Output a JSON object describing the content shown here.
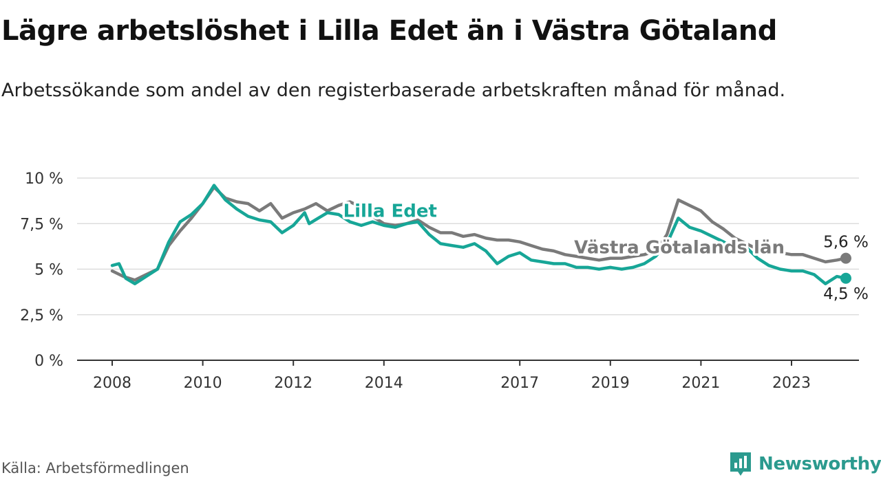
{
  "title": "Lägre arbetslöshet i Lilla Edet än i Västra Götaland",
  "subtitle": "Arbetssökande som andel av den registerbaserade arbetskraften månad för månad.",
  "source": "Källa: Arbetsförmedlingen",
  "brand": {
    "name": "Newsworthy",
    "icon": "newsworthy-logo-icon"
  },
  "colors": {
    "lilla_edet": "#17a697",
    "vastra_gotaland": "#7a7a7a",
    "grid": "#dddddd",
    "axis": "#333333"
  },
  "chart_data": {
    "type": "line",
    "title": "Lägre arbetslöshet i Lilla Edet än i Västra Götaland",
    "xlabel": "",
    "ylabel": "",
    "xlim": [
      2008,
      2024.7
    ],
    "ylim": [
      0,
      10
    ],
    "y_ticks": [
      {
        "value": 0,
        "label": "0 %"
      },
      {
        "value": 2.5,
        "label": "2,5 %"
      },
      {
        "value": 5,
        "label": "5 %"
      },
      {
        "value": 7.5,
        "label": "7,5 %"
      },
      {
        "value": 10,
        "label": "10 %"
      }
    ],
    "x_ticks": [
      {
        "value": 2008,
        "label": "2008"
      },
      {
        "value": 2010,
        "label": "2010"
      },
      {
        "value": 2012,
        "label": "2012"
      },
      {
        "value": 2014,
        "label": "2014"
      },
      {
        "value": 2017,
        "label": "2017"
      },
      {
        "value": 2019,
        "label": "2019"
      },
      {
        "value": 2021,
        "label": "2021"
      },
      {
        "value": 2023,
        "label": "2023"
      }
    ],
    "grid": true,
    "series": [
      {
        "name": "Västra Götalands län",
        "color": "#7a7a7a",
        "points": [
          [
            2008.0,
            4.9
          ],
          [
            2008.25,
            4.6
          ],
          [
            2008.5,
            4.4
          ],
          [
            2008.75,
            4.7
          ],
          [
            2009.0,
            5.0
          ],
          [
            2009.25,
            6.3
          ],
          [
            2009.5,
            7.1
          ],
          [
            2009.75,
            7.8
          ],
          [
            2010.0,
            8.6
          ],
          [
            2010.25,
            9.5
          ],
          [
            2010.5,
            8.9
          ],
          [
            2010.75,
            8.7
          ],
          [
            2011.0,
            8.6
          ],
          [
            2011.25,
            8.2
          ],
          [
            2011.5,
            8.6
          ],
          [
            2011.75,
            7.8
          ],
          [
            2012.0,
            8.1
          ],
          [
            2012.25,
            8.3
          ],
          [
            2012.5,
            8.6
          ],
          [
            2012.75,
            8.2
          ],
          [
            2013.0,
            8.5
          ],
          [
            2013.25,
            8.7
          ],
          [
            2013.5,
            8.4
          ],
          [
            2013.75,
            7.9
          ],
          [
            2014.0,
            7.5
          ],
          [
            2014.25,
            7.4
          ],
          [
            2014.5,
            7.5
          ],
          [
            2014.75,
            7.7
          ],
          [
            2015.0,
            7.3
          ],
          [
            2015.25,
            7.0
          ],
          [
            2015.5,
            7.0
          ],
          [
            2015.75,
            6.8
          ],
          [
            2016.0,
            6.9
          ],
          [
            2016.25,
            6.7
          ],
          [
            2016.5,
            6.6
          ],
          [
            2016.75,
            6.6
          ],
          [
            2017.0,
            6.5
          ],
          [
            2017.25,
            6.3
          ],
          [
            2017.5,
            6.1
          ],
          [
            2017.75,
            6.0
          ],
          [
            2018.0,
            5.8
          ],
          [
            2018.25,
            5.7
          ],
          [
            2018.5,
            5.6
          ],
          [
            2018.75,
            5.5
          ],
          [
            2019.0,
            5.6
          ],
          [
            2019.25,
            5.6
          ],
          [
            2019.5,
            5.7
          ],
          [
            2019.75,
            5.8
          ],
          [
            2020.0,
            6.0
          ],
          [
            2020.25,
            6.9
          ],
          [
            2020.5,
            8.8
          ],
          [
            2020.75,
            8.5
          ],
          [
            2021.0,
            8.2
          ],
          [
            2021.25,
            7.6
          ],
          [
            2021.5,
            7.2
          ],
          [
            2021.75,
            6.7
          ],
          [
            2022.0,
            6.4
          ],
          [
            2022.25,
            6.1
          ],
          [
            2022.5,
            5.9
          ],
          [
            2022.75,
            5.9
          ],
          [
            2023.0,
            5.8
          ],
          [
            2023.25,
            5.8
          ],
          [
            2023.5,
            5.6
          ],
          [
            2023.75,
            5.4
          ],
          [
            2024.0,
            5.5
          ],
          [
            2024.2,
            5.6
          ]
        ]
      },
      {
        "name": "Lilla Edet",
        "color": "#17a697",
        "points": [
          [
            2008.0,
            5.2
          ],
          [
            2008.15,
            5.3
          ],
          [
            2008.3,
            4.5
          ],
          [
            2008.5,
            4.2
          ],
          [
            2008.75,
            4.6
          ],
          [
            2009.0,
            5.0
          ],
          [
            2009.25,
            6.5
          ],
          [
            2009.5,
            7.6
          ],
          [
            2009.75,
            8.0
          ],
          [
            2010.0,
            8.6
          ],
          [
            2010.25,
            9.6
          ],
          [
            2010.5,
            8.8
          ],
          [
            2010.75,
            8.3
          ],
          [
            2011.0,
            7.9
          ],
          [
            2011.25,
            7.7
          ],
          [
            2011.5,
            7.6
          ],
          [
            2011.75,
            7.0
          ],
          [
            2012.0,
            7.4
          ],
          [
            2012.25,
            8.1
          ],
          [
            2012.35,
            7.5
          ],
          [
            2012.55,
            7.8
          ],
          [
            2012.75,
            8.1
          ],
          [
            2013.0,
            8.0
          ],
          [
            2013.25,
            7.6
          ],
          [
            2013.5,
            7.4
          ],
          [
            2013.75,
            7.6
          ],
          [
            2014.0,
            7.4
          ],
          [
            2014.25,
            7.3
          ],
          [
            2014.5,
            7.5
          ],
          [
            2014.75,
            7.6
          ],
          [
            2015.0,
            6.9
          ],
          [
            2015.25,
            6.4
          ],
          [
            2015.5,
            6.3
          ],
          [
            2015.75,
            6.2
          ],
          [
            2016.0,
            6.4
          ],
          [
            2016.25,
            6.0
          ],
          [
            2016.5,
            5.3
          ],
          [
            2016.75,
            5.7
          ],
          [
            2017.0,
            5.9
          ],
          [
            2017.25,
            5.5
          ],
          [
            2017.5,
            5.4
          ],
          [
            2017.75,
            5.3
          ],
          [
            2018.0,
            5.3
          ],
          [
            2018.25,
            5.1
          ],
          [
            2018.5,
            5.1
          ],
          [
            2018.75,
            5.0
          ],
          [
            2019.0,
            5.1
          ],
          [
            2019.25,
            5.0
          ],
          [
            2019.5,
            5.1
          ],
          [
            2019.75,
            5.3
          ],
          [
            2020.0,
            5.7
          ],
          [
            2020.25,
            6.4
          ],
          [
            2020.5,
            7.8
          ],
          [
            2020.75,
            7.3
          ],
          [
            2021.0,
            7.1
          ],
          [
            2021.25,
            6.8
          ],
          [
            2021.5,
            6.5
          ],
          [
            2021.75,
            6.1
          ],
          [
            2022.0,
            6.2
          ],
          [
            2022.25,
            5.6
          ],
          [
            2022.5,
            5.2
          ],
          [
            2022.75,
            5.0
          ],
          [
            2023.0,
            4.9
          ],
          [
            2023.25,
            4.9
          ],
          [
            2023.5,
            4.7
          ],
          [
            2023.75,
            4.2
          ],
          [
            2024.0,
            4.6
          ],
          [
            2024.2,
            4.5
          ]
        ]
      }
    ],
    "series_labels": [
      {
        "text": "Lilla Edet",
        "series": "Lilla Edet",
        "x": 2013.1,
        "y": 8.2
      },
      {
        "text": "Västra Götalands län",
        "series": "Västra Götalands län",
        "x": 2018.2,
        "y": 6.2
      }
    ],
    "end_labels": [
      {
        "text": "5,6 %",
        "series": "Västra Götalands län",
        "value": 5.6
      },
      {
        "text": "4,5 %",
        "series": "Lilla Edet",
        "value": 4.5
      }
    ]
  }
}
